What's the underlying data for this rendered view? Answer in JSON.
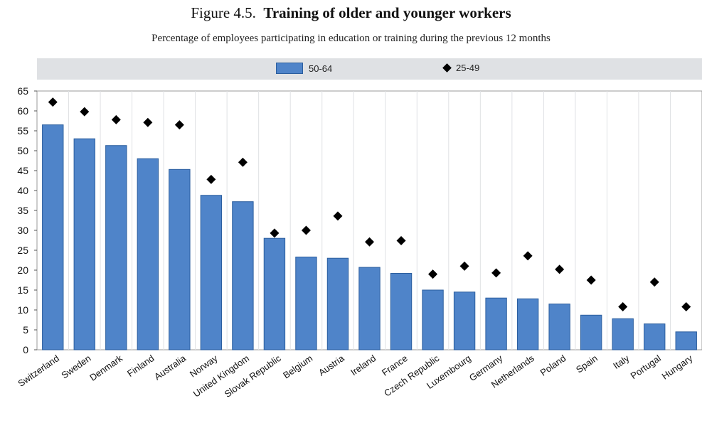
{
  "figure": {
    "number": "Figure 4.5.",
    "title": "Training of older and younger workers",
    "subtitle": "Percentage of employees participating in education or training during the previous 12 months"
  },
  "legend": {
    "bar_label": "50-64",
    "marker_label": "25-49"
  },
  "colors": {
    "bar_fill": "#4f84c9",
    "bar_stroke": "#2b5e9e",
    "marker": "#000000",
    "plot_background": "#ffffff",
    "legend_background": "#dfe1e4",
    "grid": "#dfe1e4"
  },
  "chart_data": {
    "type": "bar",
    "title": "Training of older and younger workers",
    "subtitle": "Percentage of employees participating in education or training during the previous 12 months",
    "xlabel": "",
    "ylabel": "",
    "ylim": [
      0,
      65
    ],
    "yticks": [
      0,
      5,
      10,
      15,
      20,
      25,
      30,
      35,
      40,
      45,
      50,
      55,
      60,
      65
    ],
    "grid": "vertical separators between categories",
    "legend_position": "top",
    "categories": [
      "Switzerland",
      "Sweden",
      "Denmark",
      "Finland",
      "Australia",
      "Norway",
      "United Kingdom",
      "Slovak Republic",
      "Belgium",
      "Austria",
      "Ireland",
      "France",
      "Czech Republic",
      "Luxembourg",
      "Germany",
      "Netherlands",
      "Poland",
      "Spain",
      "Italy",
      "Portugal",
      "Hungary"
    ],
    "series": [
      {
        "name": "50-64",
        "type": "bar",
        "values": [
          56.5,
          53,
          51.3,
          48,
          45.3,
          38.8,
          37.2,
          28,
          23.3,
          23,
          20.7,
          19.2,
          15,
          14.5,
          13,
          12.8,
          11.5,
          8.7,
          7.8,
          6.5,
          4.5
        ]
      },
      {
        "name": "25-49",
        "type": "marker",
        "values": [
          62.2,
          59.8,
          57.8,
          57.1,
          56.5,
          42.8,
          47.1,
          29.3,
          30,
          33.6,
          27.1,
          27.4,
          19,
          21,
          19.3,
          23.6,
          20.2,
          17.5,
          10.8,
          17,
          10.8
        ]
      }
    ]
  }
}
